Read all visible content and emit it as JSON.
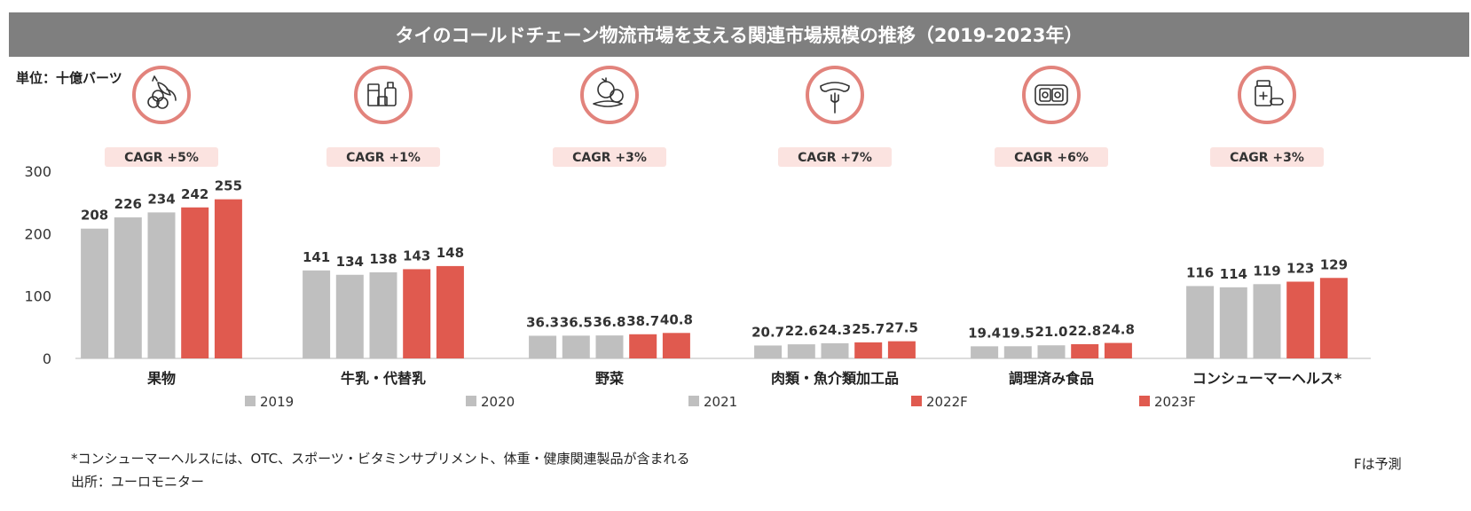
{
  "title": "タイのコールドチェーン物流市場を支える関連市場規模の推移（2019-2023年）",
  "unit_label": "単位：十億バーツ",
  "footnote": "*コンシューマーヘルスには、OTC、スポーツ・ビタミンサプリメント、体重・健康関連製品が含まれる",
  "source": "出所：ユーロモニター",
  "forecast_note": "Fは予測",
  "colors": {
    "actual": "#bfbfbf",
    "forecast": "#e05a4f",
    "icon_ring": "#e2837c",
    "cagr_bg": "#fbe3e0",
    "title_bg": "#7f7f7f"
  },
  "icons": [
    "fruit-icon",
    "milk-dairy-icon",
    "vegetable-icon",
    "meat-fork-icon",
    "ready-meal-icon",
    "medicine-icon"
  ],
  "chart_data": {
    "type": "bar",
    "title": "タイのコールドチェーン物流市場を支える関連市場規模の推移（2019-2023年）",
    "ylabel": "単位：十億バーツ",
    "ylim": [
      0,
      300
    ],
    "yticks": [
      "0",
      "100",
      "200",
      "300"
    ],
    "grid": false,
    "legend_position": "bottom",
    "categories": [
      "果物",
      "牛乳・代替乳",
      "野菜",
      "肉類・魚介類加工品",
      "調理済み食品",
      "コンシューマーヘルス*"
    ],
    "cagr": [
      "CAGR +5%",
      "CAGR +1%",
      "CAGR +3%",
      "CAGR +7%",
      "CAGR +6%",
      "CAGR +3%"
    ],
    "series": [
      {
        "name": "2019",
        "forecast": false,
        "values": [
          208,
          141,
          36.3,
          20.7,
          19.4,
          116
        ],
        "labels": [
          "208",
          "141",
          "36.3",
          "20.7",
          "19.4",
          "116"
        ]
      },
      {
        "name": "2020",
        "forecast": false,
        "values": [
          226,
          134,
          36.5,
          22.6,
          19.5,
          114
        ],
        "labels": [
          "226",
          "134",
          "36.5",
          "22.6",
          "19.5",
          "114"
        ]
      },
      {
        "name": "2021",
        "forecast": false,
        "values": [
          234,
          138,
          36.8,
          24.3,
          21.0,
          119
        ],
        "labels": [
          "234",
          "138",
          "36.8",
          "24.3",
          "21.0",
          "119"
        ]
      },
      {
        "name": "2022F",
        "forecast": true,
        "values": [
          242,
          143,
          38.7,
          25.7,
          22.8,
          123
        ],
        "labels": [
          "242",
          "143",
          "38.7",
          "25.7",
          "22.8",
          "123"
        ]
      },
      {
        "name": "2023F",
        "forecast": true,
        "values": [
          255,
          148,
          40.8,
          27.5,
          24.8,
          129
        ],
        "labels": [
          "255",
          "148",
          "40.8",
          "27.5",
          "24.8",
          "129"
        ]
      }
    ]
  }
}
